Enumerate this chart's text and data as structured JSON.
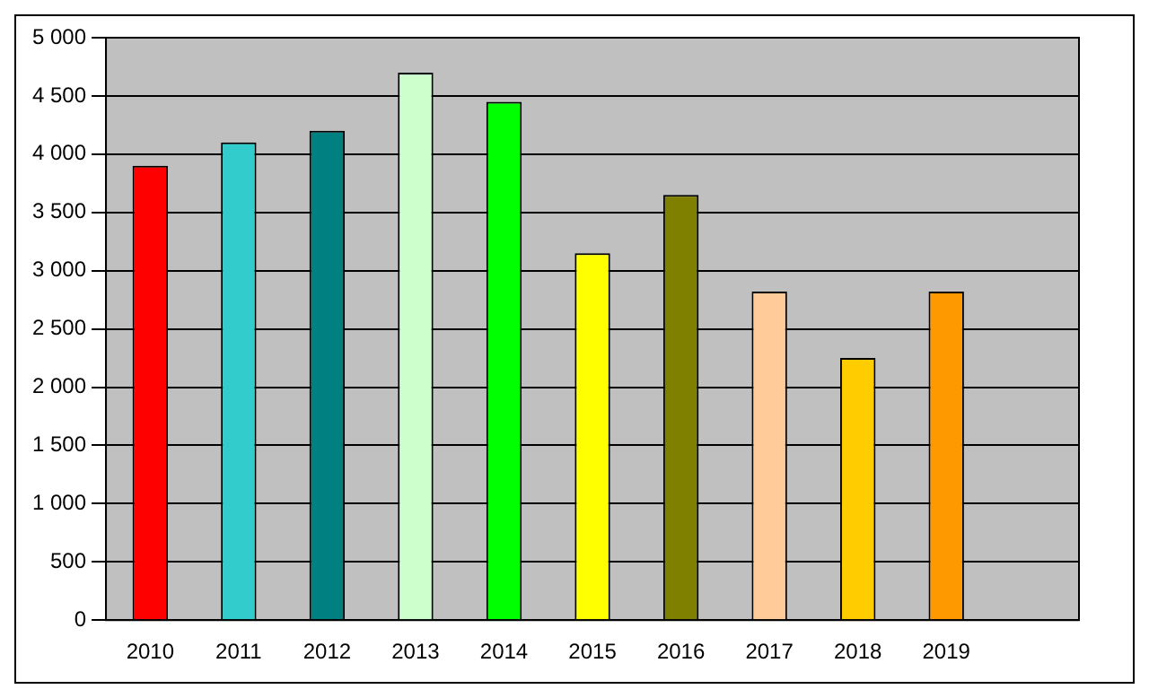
{
  "chart_data": {
    "type": "bar",
    "categories": [
      "2010",
      "2011",
      "2012",
      "2013",
      "2014",
      "2015",
      "2016",
      "2017",
      "2018",
      "2019",
      null
    ],
    "values": [
      3900,
      4100,
      4200,
      4700,
      4450,
      3150,
      3650,
      2820,
      2250,
      2820,
      null
    ],
    "colors": [
      "#ff0000",
      "#33cccc",
      "#008080",
      "#ccffcc",
      "#00ff00",
      "#ffff00",
      "#808000",
      "#ffcc99",
      "#ffcc00",
      "#ff9900",
      "#c0c0c0"
    ],
    "ylim": [
      0,
      5000
    ],
    "yticks": [
      {
        "value": 0,
        "label": "0"
      },
      {
        "value": 500,
        "label": "500"
      },
      {
        "value": 1000,
        "label": "1 000"
      },
      {
        "value": 1500,
        "label": "1 500"
      },
      {
        "value": 2000,
        "label": "2 000"
      },
      {
        "value": 2500,
        "label": "2 500"
      },
      {
        "value": 3000,
        "label": "3 000"
      },
      {
        "value": 3500,
        "label": "3 500"
      },
      {
        "value": 4000,
        "label": "4 000"
      },
      {
        "value": 4500,
        "label": "4 500"
      },
      {
        "value": 5000,
        "label": "5 000"
      }
    ],
    "grid": "y",
    "legend": false
  }
}
